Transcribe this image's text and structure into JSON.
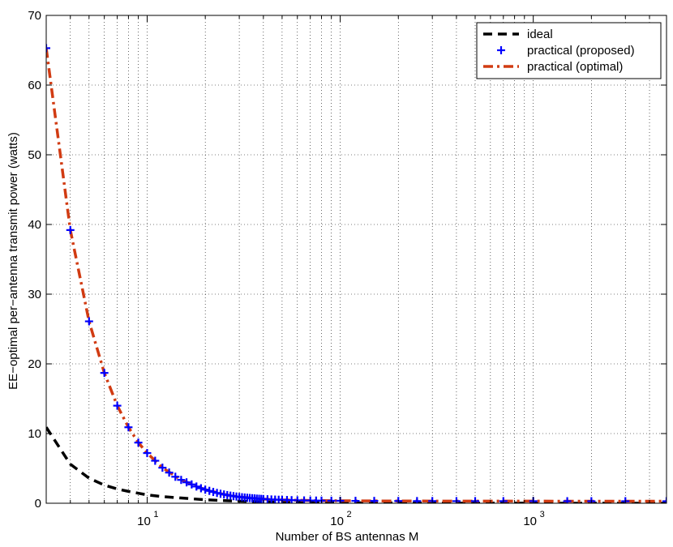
{
  "chart_data": {
    "type": "line",
    "title": "",
    "xlabel": "Number of BS antennas M",
    "ylabel": "EE−optimal per−antenna transmit power (watts)",
    "xscale": "log",
    "xlim": [
      3,
      4900
    ],
    "ylim": [
      0,
      70
    ],
    "grid": "dotted",
    "legend_position": "top-right",
    "x_ticks": [
      {
        "value": 10,
        "base": "10",
        "exp": "1"
      },
      {
        "value": 100,
        "base": "10",
        "exp": "2"
      },
      {
        "value": 1000,
        "base": "10",
        "exp": "3"
      }
    ],
    "y_ticks": [
      0,
      10,
      20,
      30,
      40,
      50,
      60,
      70
    ],
    "series": [
      {
        "name": "ideal",
        "style": "dashed",
        "color": "#000000",
        "x": [
          3,
          4,
          5,
          6,
          7,
          8,
          10,
          12,
          15,
          20,
          25,
          30,
          40,
          60,
          100,
          200,
          500,
          1000,
          2000,
          4900
        ],
        "y": [
          10.9,
          5.6,
          3.6,
          2.6,
          2.05,
          1.7,
          1.2,
          0.95,
          0.75,
          0.5,
          0.38,
          0.3,
          0.2,
          0.12,
          0.07,
          0.035,
          0.015,
          0.008,
          0.004,
          0.002
        ]
      },
      {
        "name": "practical (proposed)",
        "style": "markers",
        "marker": "plus",
        "color": "#0000ff",
        "x": [
          3,
          4,
          5,
          6,
          7,
          8,
          9,
          10,
          11,
          12,
          13,
          14,
          15,
          16,
          17,
          18,
          19,
          20,
          21,
          22,
          23,
          24,
          25,
          26,
          27,
          28,
          29,
          30,
          31,
          32,
          33,
          34,
          35,
          36,
          37,
          38,
          39,
          40,
          42,
          44,
          46,
          48,
          50,
          53,
          56,
          60,
          65,
          70,
          75,
          80,
          90,
          100,
          120,
          150,
          200,
          250,
          300,
          400,
          500,
          700,
          1000,
          1500,
          2000,
          3000,
          4900
        ],
        "y": [
          65.3,
          39.2,
          26.1,
          18.7,
          14.0,
          10.9,
          8.7,
          7.2,
          6.1,
          5.1,
          4.4,
          3.8,
          3.35,
          3.0,
          2.7,
          2.4,
          2.15,
          1.95,
          1.78,
          1.62,
          1.48,
          1.36,
          1.26,
          1.17,
          1.09,
          1.02,
          0.96,
          0.9,
          0.86,
          0.82,
          0.78,
          0.75,
          0.72,
          0.69,
          0.66,
          0.64,
          0.62,
          0.6,
          0.57,
          0.54,
          0.52,
          0.5,
          0.48,
          0.46,
          0.44,
          0.42,
          0.4,
          0.39,
          0.38,
          0.37,
          0.36,
          0.35,
          0.34,
          0.33,
          0.32,
          0.31,
          0.31,
          0.3,
          0.3,
          0.3,
          0.3,
          0.29,
          0.29,
          0.29,
          0.29
        ]
      },
      {
        "name": "practical (optimal)",
        "style": "dashdot",
        "color": "#d13b12",
        "x": [
          3,
          4,
          5,
          6,
          7,
          8,
          9,
          10,
          12,
          15,
          20,
          25,
          30,
          40,
          50,
          70,
          100,
          150,
          200,
          300,
          500,
          1000,
          2000,
          4900
        ],
        "y": [
          65.3,
          39.2,
          26.1,
          18.7,
          14.0,
          10.9,
          8.7,
          7.2,
          5.1,
          3.35,
          1.95,
          1.26,
          0.9,
          0.6,
          0.48,
          0.39,
          0.35,
          0.33,
          0.32,
          0.31,
          0.3,
          0.3,
          0.29,
          0.29
        ]
      }
    ]
  }
}
